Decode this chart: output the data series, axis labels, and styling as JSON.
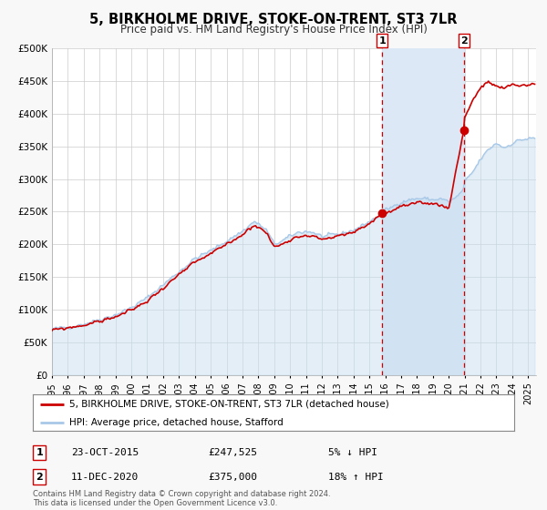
{
  "title": "5, BIRKHOLME DRIVE, STOKE-ON-TRENT, ST3 7LR",
  "subtitle": "Price paid vs. HM Land Registry's House Price Index (HPI)",
  "ylim": [
    0,
    500000
  ],
  "yticks": [
    0,
    50000,
    100000,
    150000,
    200000,
    250000,
    300000,
    350000,
    400000,
    450000,
    500000
  ],
  "ytick_labels": [
    "£0",
    "£50K",
    "£100K",
    "£150K",
    "£200K",
    "£250K",
    "£300K",
    "£350K",
    "£400K",
    "£450K",
    "£500K"
  ],
  "xlim_start": 1995.0,
  "xlim_end": 2025.5,
  "hpi_color": "#a8c8e8",
  "hpi_fill_color": "#c8dff0",
  "sale_color": "#cc0000",
  "sale_dot_color": "#cc0000",
  "grid_color": "#cccccc",
  "plot_bg": "#ffffff",
  "fig_bg": "#f8f8f8",
  "marker1_x": 2015.81,
  "marker1_y": 247525,
  "marker2_x": 2020.95,
  "marker2_y": 375000,
  "vline_color": "#cc0000",
  "span_color": "#dce8f5",
  "legend_label_sale": "5, BIRKHOLME DRIVE, STOKE-ON-TRENT, ST3 7LR (detached house)",
  "legend_label_hpi": "HPI: Average price, detached house, Stafford",
  "note1_num": "1",
  "note1_date": "23-OCT-2015",
  "note1_price": "£247,525",
  "note1_pct": "5% ↓ HPI",
  "note2_num": "2",
  "note2_date": "11-DEC-2020",
  "note2_price": "£375,000",
  "note2_pct": "18% ↑ HPI",
  "footer": "Contains HM Land Registry data © Crown copyright and database right 2024.\nThis data is licensed under the Open Government Licence v3.0."
}
